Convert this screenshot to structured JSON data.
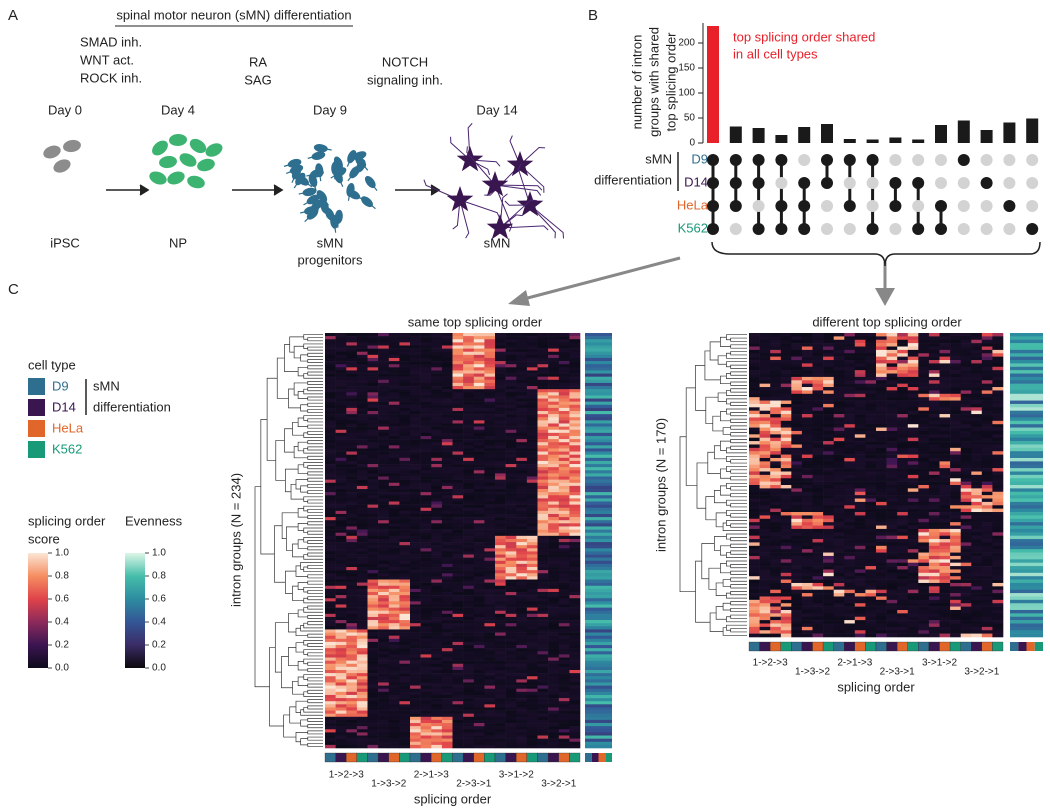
{
  "panel_a": {
    "label": "A",
    "title": "spinal motor neuron (sMN) differentiation",
    "treatments": [
      [
        "SMAD inh.",
        "WNT act.",
        "ROCK inh."
      ],
      [
        "RA",
        "SAG"
      ],
      [
        "NOTCH",
        "signaling inh."
      ]
    ],
    "stages": [
      {
        "day": "Day 0",
        "cell": [
          "iPSC"
        ]
      },
      {
        "day": "Day 4",
        "cell": [
          "NP"
        ]
      },
      {
        "day": "Day 9",
        "cell": [
          "sMN",
          "progenitors"
        ]
      },
      {
        "day": "Day 14",
        "cell": [
          "sMN"
        ]
      }
    ]
  },
  "chart_data": {
    "type": "upset",
    "label": "B",
    "y_label": [
      "number of intron",
      "groups with shared",
      "top splicing order"
    ],
    "annotation": [
      "top splicing order shared",
      "in all cell types"
    ],
    "values": [
      234,
      33,
      30,
      16,
      32,
      38,
      8,
      7,
      11,
      7,
      36,
      45,
      26,
      41,
      49
    ],
    "highlight_color": "#e8202a",
    "color": "#1a1a1a",
    "ylim": [
      0,
      240
    ],
    "yticks": [
      0,
      50,
      100,
      150,
      200
    ],
    "sets": [
      {
        "name": "D9",
        "color": "#2e6e8e"
      },
      {
        "name": "D14",
        "color": "#3a1650"
      },
      {
        "name": "HeLa",
        "color": "#e0662a"
      },
      {
        "name": "K562",
        "color": "#189a78"
      }
    ],
    "set_group": [
      "sMN",
      "differentiation"
    ],
    "intersections": [
      [
        0,
        1,
        2,
        3
      ],
      [
        0,
        1,
        2
      ],
      [
        0,
        1,
        3
      ],
      [
        0,
        2,
        3
      ],
      [
        1,
        2,
        3
      ],
      [
        0,
        1
      ],
      [
        0,
        2
      ],
      [
        0,
        3
      ],
      [
        1,
        2
      ],
      [
        1,
        3
      ],
      [
        2,
        3
      ],
      [
        0
      ],
      [
        1
      ],
      [
        2
      ],
      [
        3
      ]
    ]
  },
  "panel_c": {
    "label": "C",
    "legend_title": "cell type",
    "score_legend": {
      "title": [
        "splicing order",
        "score"
      ],
      "ticks": [
        {
          "value": 1,
          "label": "1.0"
        },
        0.8,
        0.6,
        0.4,
        0.2,
        {
          "value": 0,
          "label": "0.0"
        }
      ]
    },
    "evenness_legend": {
      "title": "Evenness",
      "ticks": [
        {
          "value": 1,
          "label": "1.0"
        },
        0.8,
        0.6,
        0.4,
        0.2,
        {
          "value": 0,
          "label": "0.0"
        }
      ]
    },
    "heatmaps": [
      {
        "title": "same top splicing order",
        "y_label": "intron groups (N = 234)",
        "x_label": "splicing order",
        "orders": [
          "1->2->3",
          "1->3->2",
          "2->1->3",
          "2->3->1",
          "3->1->2",
          "3->2->1"
        ]
      },
      {
        "title": "different top splicing order",
        "y_label": "intron groups (N = 170)",
        "x_label": "splicing order",
        "orders": [
          "1->2->3",
          "1->3->2",
          "2->1->3",
          "2->3->1",
          "3->1->2",
          "3->2->1"
        ]
      }
    ]
  }
}
